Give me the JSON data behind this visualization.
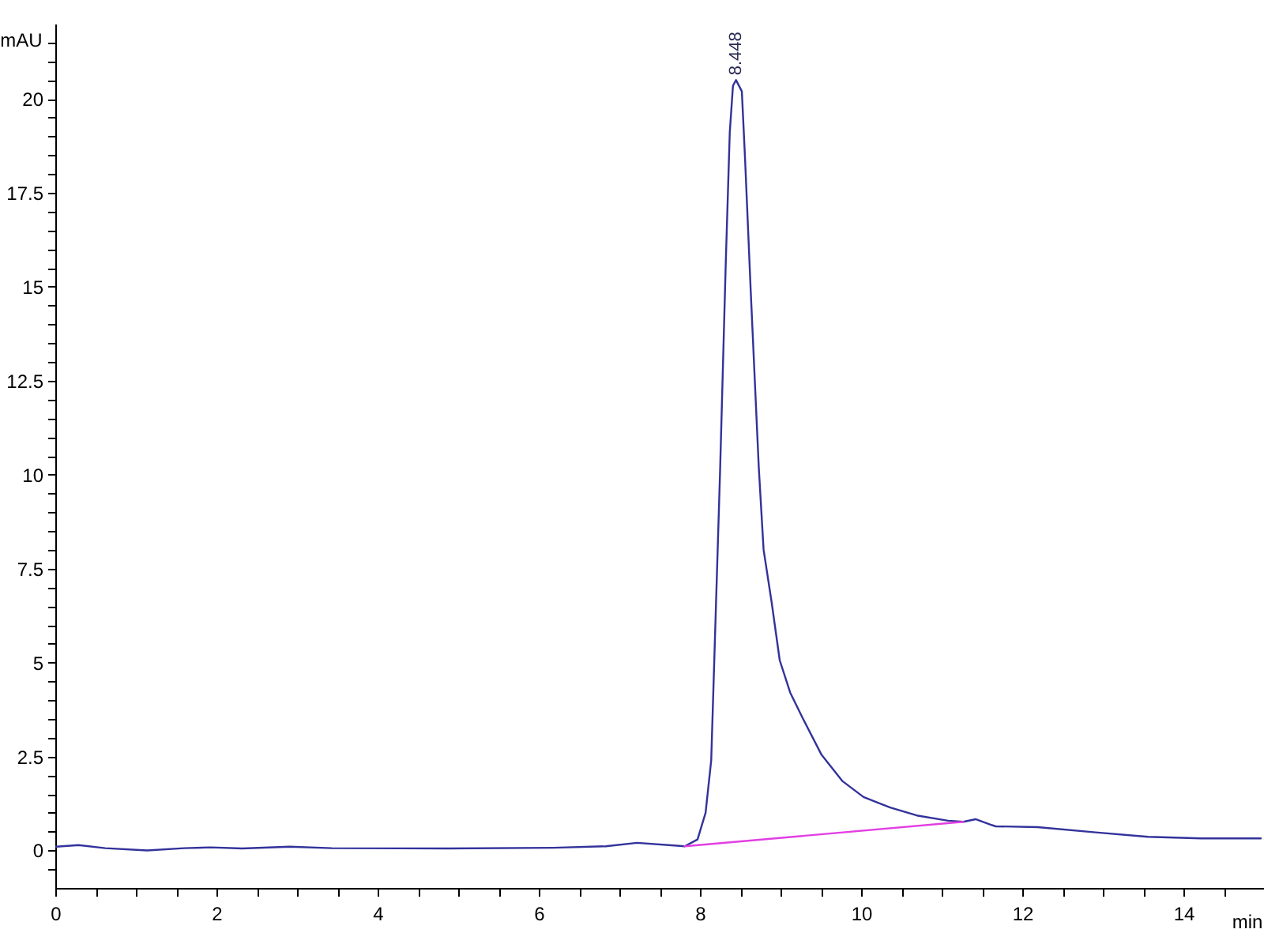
{
  "chart_data": {
    "type": "line",
    "xlabel": "min",
    "ylabel": "mAU",
    "xlim": [
      0,
      15
    ],
    "ylim": [
      -1,
      22
    ],
    "xticks": [
      0,
      {
        "value": 0.5,
        "label": null
      },
      {
        "value": 1,
        "label": null
      },
      {
        "value": 1.5,
        "label": null
      },
      2,
      {
        "value": 2.5,
        "label": null
      },
      {
        "value": 3,
        "label": null
      },
      {
        "value": 3.5,
        "label": null
      },
      4,
      {
        "value": 4.5,
        "label": null
      },
      {
        "value": 5,
        "label": null
      },
      {
        "value": 5.5,
        "label": null
      },
      6,
      {
        "value": 6.5,
        "label": null
      },
      {
        "value": 7,
        "label": null
      },
      {
        "value": 7.5,
        "label": null
      },
      8,
      {
        "value": 8.5,
        "label": null
      },
      {
        "value": 9,
        "label": null
      },
      {
        "value": 9.5,
        "label": null
      },
      10,
      {
        "value": 10.5,
        "label": null
      },
      {
        "value": 11,
        "label": null
      },
      {
        "value": 11.5,
        "label": null
      },
      12,
      {
        "value": 12.5,
        "label": null
      },
      {
        "value": 13,
        "label": null
      },
      {
        "value": 13.5,
        "label": null
      },
      14,
      {
        "value": 14.5,
        "label": null
      }
    ],
    "yticks": [
      {
        "value": -0.5,
        "label": null
      },
      0,
      {
        "value": 0.5,
        "label": null
      },
      {
        "value": 1,
        "label": null
      },
      {
        "value": 1.5,
        "label": null
      },
      {
        "value": 2,
        "label": null
      },
      2.5,
      {
        "value": 3,
        "label": null
      },
      {
        "value": 3.5,
        "label": null
      },
      {
        "value": 4,
        "label": null
      },
      {
        "value": 4.5,
        "label": null
      },
      5,
      {
        "value": 5.5,
        "label": null
      },
      {
        "value": 6,
        "label": null
      },
      {
        "value": 6.5,
        "label": null
      },
      {
        "value": 7,
        "label": null
      },
      7.5,
      {
        "value": 8,
        "label": null
      },
      {
        "value": 8.5,
        "label": null
      },
      {
        "value": 9,
        "label": null
      },
      {
        "value": 9.5,
        "label": null
      },
      10,
      {
        "value": 10.5,
        "label": null
      },
      {
        "value": 11,
        "label": null
      },
      {
        "value": 11.5,
        "label": null
      },
      {
        "value": 12,
        "label": null
      },
      12.5,
      {
        "value": 13,
        "label": null
      },
      {
        "value": 13.5,
        "label": null
      },
      {
        "value": 14,
        "label": null
      },
      {
        "value": 14.5,
        "label": null
      },
      15,
      {
        "value": 15.5,
        "label": null
      },
      {
        "value": 16,
        "label": null
      },
      {
        "value": 16.5,
        "label": null
      },
      {
        "value": 17,
        "label": null
      },
      17.5,
      {
        "value": 18,
        "label": null
      },
      {
        "value": 18.5,
        "label": null
      },
      {
        "value": 19,
        "label": null
      },
      {
        "value": 19.5,
        "label": null
      },
      20,
      {
        "value": 20.5,
        "label": null
      },
      {
        "value": 21,
        "label": null
      },
      {
        "value": 21.5,
        "label": null
      }
    ],
    "series": [
      {
        "color": "#32329b",
        "x": [
          0.01,
          0.29,
          0.62,
          1.14,
          1.6,
          1.93,
          2.32,
          2.91,
          3.43,
          4.87,
          6.18,
          6.83,
          7.22,
          7.75,
          7.81,
          7.97,
          8.07,
          8.14,
          8.18,
          8.22,
          8.25,
          8.32,
          8.37,
          8.41,
          8.448,
          8.52,
          8.56,
          8.63,
          8.73,
          8.79,
          8.89,
          8.99,
          9.12,
          9.28,
          9.51,
          9.77,
          10.03,
          10.36,
          10.69,
          11.08,
          11.27,
          11.42,
          11.6,
          11.67,
          12.19,
          12.91,
          13.56,
          14.22,
          14.96
        ],
        "values": [
          0.1,
          0.14,
          0.06,
          0.0,
          0.06,
          0.08,
          0.05,
          0.1,
          0.06,
          0.05,
          0.07,
          0.11,
          0.2,
          0.12,
          0.11,
          0.29,
          1.0,
          2.4,
          5.2,
          8.0,
          10.1,
          15.6,
          19.1,
          20.35,
          20.5,
          20.2,
          18.4,
          14.9,
          10.2,
          8.0,
          6.6,
          5.06,
          4.2,
          3.5,
          2.54,
          1.84,
          1.42,
          1.14,
          0.93,
          0.79,
          0.76,
          0.83,
          0.69,
          0.64,
          0.62,
          0.48,
          0.36,
          0.32,
          0.32
        ]
      },
      {
        "color": "#e33ee3",
        "x": [
          7.81,
          11.27
        ],
        "values": [
          0.11,
          0.76
        ]
      }
    ],
    "annotations": [
      {
        "text": "8.448",
        "x": 8.448,
        "y": 20.5
      }
    ]
  }
}
